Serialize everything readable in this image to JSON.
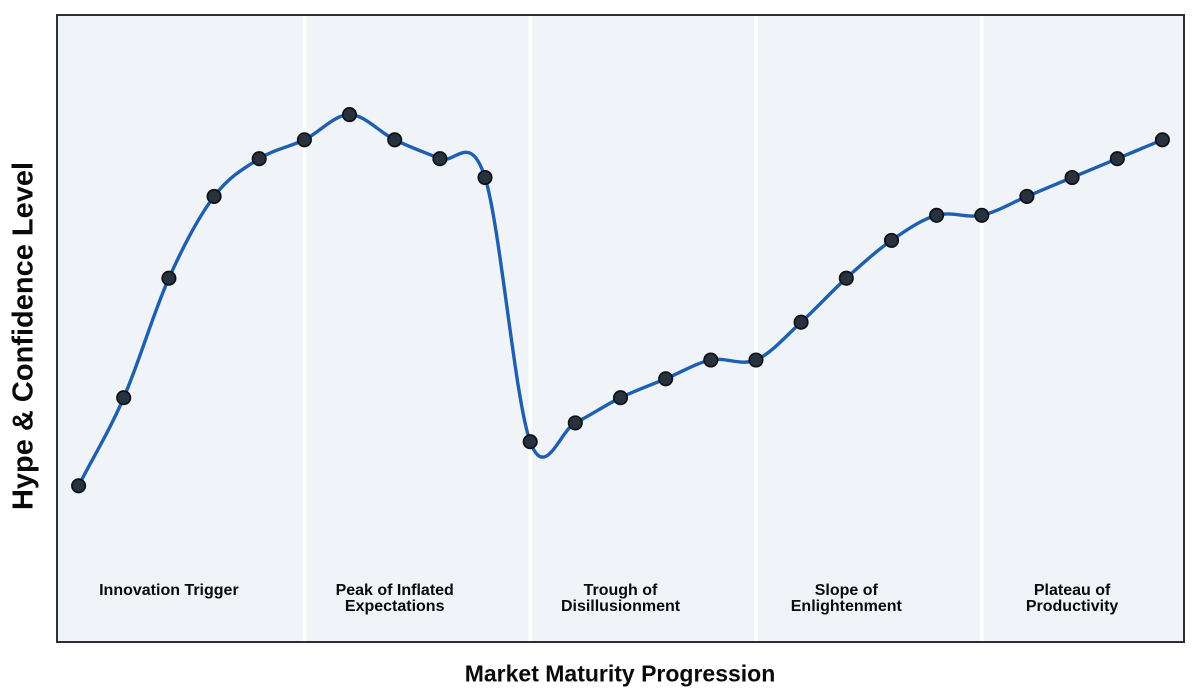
{
  "chart_data": {
    "type": "line",
    "title": "",
    "xlabel": "Market Maturity Progression",
    "ylabel": "Hype & Confidence Level",
    "x": [
      0,
      1,
      2,
      3,
      4,
      5,
      6,
      7,
      8,
      9,
      10,
      11,
      12,
      13,
      14,
      15,
      16,
      17,
      18,
      19,
      20,
      21,
      22,
      23,
      24
    ],
    "values": [
      25,
      39,
      58,
      71,
      77,
      80,
      84,
      80,
      77,
      74,
      32,
      35,
      39,
      42,
      45,
      45,
      51,
      58,
      64,
      68,
      68,
      71,
      74,
      77,
      80
    ],
    "xlim": [
      -0.5,
      24.5
    ],
    "ylim": [
      0,
      100
    ],
    "grid": false,
    "legend": "none",
    "smooth": true,
    "marker": "circle",
    "separators_x": [
      5,
      10,
      15,
      20
    ],
    "phase_label_top_y": 9.5,
    "phases": [
      {
        "lines": [
          "Innovation Trigger"
        ],
        "center_x": 2
      },
      {
        "lines": [
          "Peak of Inflated",
          "Expectations"
        ],
        "center_x": 7
      },
      {
        "lines": [
          "Trough of",
          "Disillusionment"
        ],
        "center_x": 12
      },
      {
        "lines": [
          "Slope of",
          "Enlightenment"
        ],
        "center_x": 17
      },
      {
        "lines": [
          "Plateau of",
          "Productivity"
        ],
        "center_x": 22
      }
    ],
    "colors": {
      "line": "#1e5faf",
      "marker_fill": "#28323e",
      "marker_edge": "#0d1117",
      "plot_background": "#f0f4f8",
      "separator": "#ffffff",
      "frame": "#2b2f36",
      "label_text": "#0a0a0a",
      "page_background": "#ffffff"
    }
  }
}
